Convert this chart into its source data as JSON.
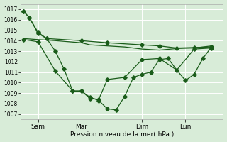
{
  "bg_color": "#d8ecd8",
  "plot_bg": "#d8ecd8",
  "grid_color": "#ffffff",
  "line_color": "#1a5c1a",
  "ylabel_text": "Pression niveau de la mer( hPa )",
  "xtick_labels": [
    "Sam",
    "Mar",
    "Dim",
    "Lun"
  ],
  "ylim": [
    1006.5,
    1017.5
  ],
  "yticks": [
    1007,
    1008,
    1009,
    1010,
    1011,
    1012,
    1013,
    1014,
    1015,
    1016,
    1017
  ],
  "xlim": [
    0,
    10.5
  ],
  "xtick_positions": [
    0.9,
    3.15,
    6.3,
    8.55
  ],
  "line1_x": [
    0.15,
    0.45,
    0.9,
    1.35,
    3.15,
    4.5,
    6.3,
    7.2,
    8.1,
    9.0,
    9.9
  ],
  "line1_y": [
    1016.8,
    1016.2,
    1014.7,
    1014.2,
    1014.0,
    1013.8,
    1013.6,
    1013.5,
    1013.3,
    1013.35,
    1013.4
  ],
  "line2_x": [
    0.15,
    0.9,
    1.8,
    3.15,
    3.6,
    4.5,
    5.4,
    6.3,
    7.2,
    8.1,
    9.0,
    9.9
  ],
  "line2_y": [
    1014.2,
    1014.1,
    1014.0,
    1013.8,
    1013.6,
    1013.5,
    1013.4,
    1013.2,
    1013.1,
    1013.25,
    1013.3,
    1013.5
  ],
  "line3_x": [
    0.15,
    0.9,
    1.8,
    2.7,
    3.15,
    3.6,
    4.05,
    4.5,
    5.4,
    6.3,
    7.2,
    8.1,
    9.0,
    9.9
  ],
  "line3_y": [
    1014.1,
    1013.9,
    1011.1,
    1009.2,
    1009.2,
    1008.5,
    1008.4,
    1010.3,
    1010.5,
    1012.2,
    1012.3,
    1011.2,
    1013.2,
    1013.3
  ],
  "line4_x": [
    0.15,
    0.45,
    0.9,
    1.35,
    1.8,
    2.25,
    2.7,
    3.15,
    3.6,
    4.05,
    4.5,
    4.95,
    5.4,
    5.85,
    6.3,
    6.75,
    7.2,
    7.65,
    8.1,
    8.55,
    9.0,
    9.45,
    9.9
  ],
  "line4_y": [
    1016.8,
    1016.2,
    1014.8,
    1014.2,
    1013.0,
    1011.3,
    1009.2,
    1009.2,
    1008.6,
    1008.3,
    1007.5,
    1007.4,
    1008.7,
    1010.5,
    1010.8,
    1011.0,
    1012.2,
    1012.3,
    1011.2,
    1010.2,
    1010.8,
    1012.3,
    1013.4
  ]
}
